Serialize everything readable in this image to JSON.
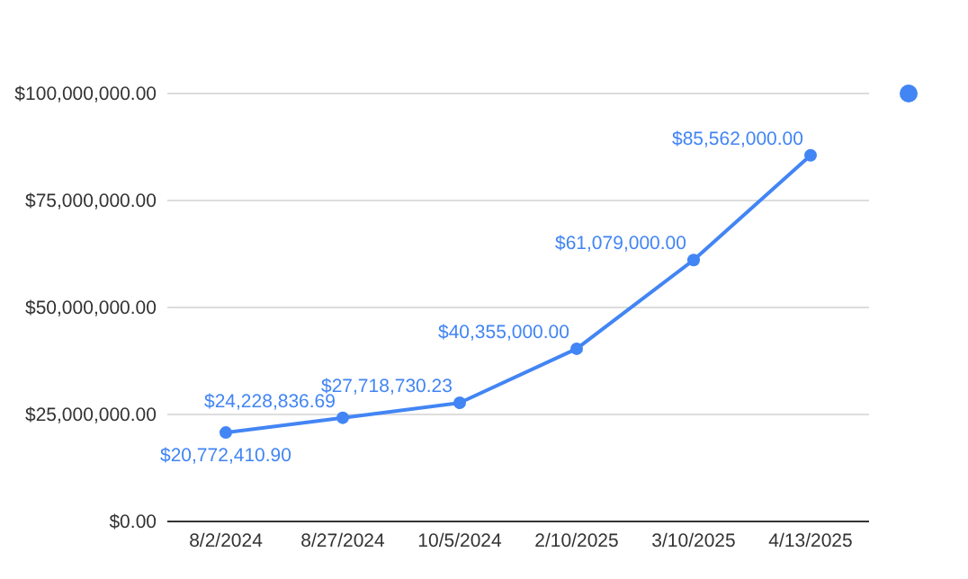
{
  "chart_data": {
    "type": "line",
    "categories": [
      "8/2/2024",
      "8/27/2024",
      "10/5/2024",
      "2/10/2025",
      "3/10/2025",
      "4/13/2025"
    ],
    "series": [
      {
        "color": "#4285f4",
        "values": [
          20772410.9,
          24228836.69,
          27718730.23,
          40355000,
          61079000,
          85562000
        ],
        "value_labels": [
          "$20,772,410.90",
          "$24,228,836.69",
          "$27,718,730.23",
          "$40,355,000.00",
          "$61,079,000.00",
          "$85,562,000.00"
        ]
      }
    ],
    "ylim": [
      0,
      100000000
    ],
    "yticks": [
      {
        "value": 0,
        "label": "$0.00"
      },
      {
        "value": 25000000,
        "label": "$25,000,000.00"
      },
      {
        "value": 50000000,
        "label": "$50,000,000.00"
      },
      {
        "value": 75000000,
        "label": "$75,000,000.00"
      },
      {
        "value": 100000000,
        "label": "$100,000,000.00"
      }
    ],
    "grid": "y",
    "marker": "circle"
  }
}
